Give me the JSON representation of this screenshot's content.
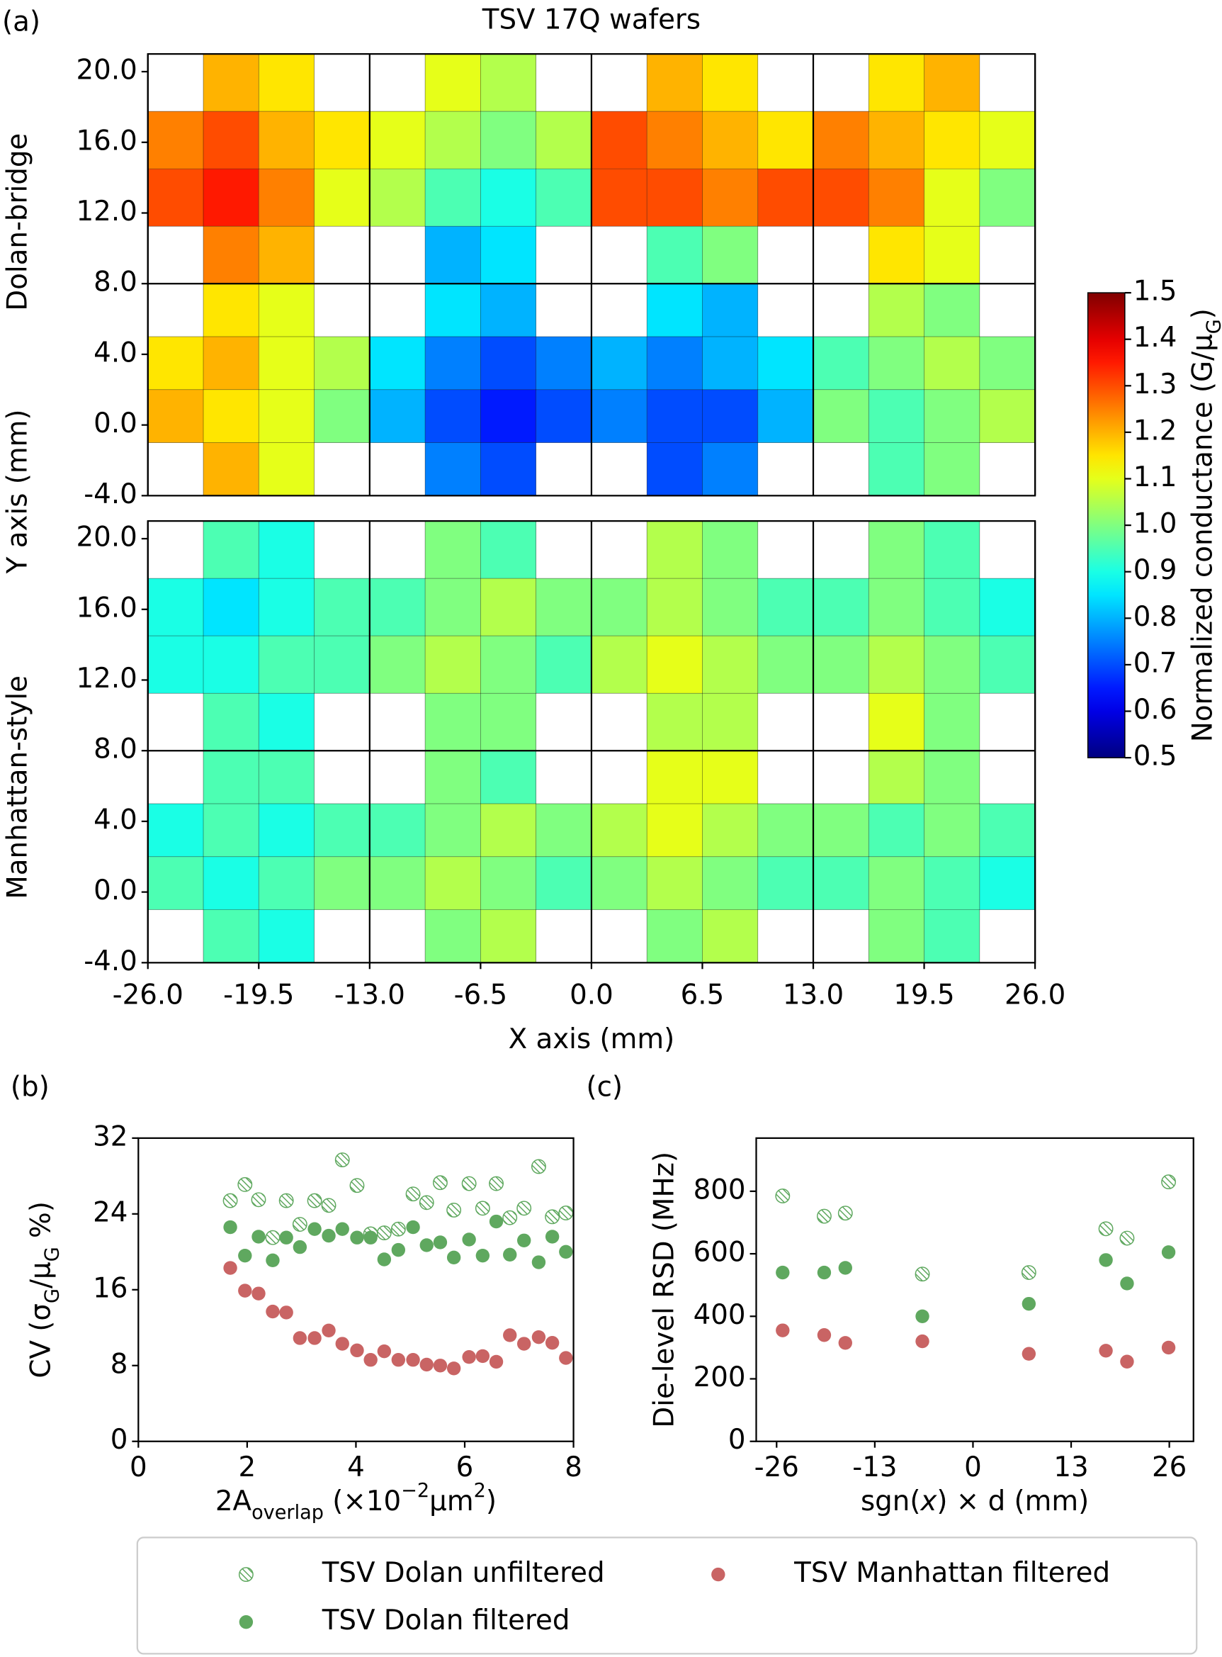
{
  "chart_data": [
    {
      "type": "heatmap",
      "title": "TSV 17Q wafers",
      "panel_label": "(a)",
      "xlabel": "X axis (mm)",
      "ylabel": "Y axis (mm)",
      "xlim": [
        -26,
        26
      ],
      "ylim": [
        -4,
        21
      ],
      "xticks": [
        {
          "value": -26,
          "label": "-26.0"
        },
        -19.5,
        {
          "value": -13,
          "label": "-13.0"
        },
        -6.5,
        {
          "value": 0,
          "label": "0.0"
        },
        6.5,
        {
          "value": 13,
          "label": "13.0"
        },
        19.5,
        {
          "value": 26,
          "label": "26.0"
        }
      ],
      "yticks": [
        {
          "value": -4,
          "label": "-4.0"
        },
        {
          "value": 0,
          "label": "0.0"
        },
        {
          "value": 4,
          "label": "4.0"
        },
        {
          "value": 8,
          "label": "8.0"
        },
        {
          "value": 12,
          "label": "12.0"
        },
        {
          "value": 16,
          "label": "16.0"
        },
        {
          "value": 20,
          "label": "20.0"
        }
      ],
      "xbins": [
        -26,
        -22.75,
        -19.5,
        -16.25,
        -13,
        -9.75,
        -6.5,
        -3.25,
        0,
        3.25,
        6.5,
        9.75,
        13,
        16.25,
        19.5,
        22.75,
        26
      ],
      "ybins": [
        21,
        17.75,
        14.5,
        11.25,
        8,
        5,
        2,
        -1,
        -4
      ],
      "colormap": "jet",
      "clim": [
        0.5,
        1.5
      ],
      "colorbar": {
        "label": [
          {
            "text": "Normalized conductance (G/μ"
          },
          {
            "text": "G",
            "shift": "sub"
          },
          {
            "text": ")"
          }
        ],
        "ticks": [
          0.5,
          0.6,
          0.7,
          0.8,
          0.9,
          {
            "value": 1,
            "label": "1.0"
          },
          1.1,
          1.2,
          1.3,
          1.4,
          1.5
        ]
      },
      "panels": [
        {
          "name": "Dolan-bridge",
          "color": "#6ab36a",
          "values": [
            [
              null,
              1.2,
              1.15,
              null,
              null,
              1.1,
              1.05,
              null,
              null,
              1.2,
              1.15,
              null,
              null,
              1.15,
              1.2,
              null
            ],
            [
              1.25,
              1.3,
              1.2,
              1.15,
              1.1,
              1.05,
              1.0,
              1.05,
              1.3,
              1.25,
              1.2,
              1.15,
              1.25,
              1.2,
              1.15,
              1.1
            ],
            [
              1.3,
              1.35,
              1.25,
              1.1,
              1.05,
              0.95,
              0.9,
              0.95,
              1.3,
              1.3,
              1.25,
              1.3,
              1.3,
              1.25,
              1.1,
              1.0
            ],
            [
              null,
              1.25,
              1.2,
              null,
              null,
              0.8,
              0.85,
              null,
              null,
              0.95,
              1.0,
              null,
              null,
              1.15,
              1.1,
              null
            ],
            [
              null,
              1.15,
              1.1,
              null,
              null,
              0.85,
              0.8,
              null,
              null,
              0.85,
              0.8,
              null,
              null,
              1.05,
              1.0,
              null
            ],
            [
              1.15,
              1.2,
              1.1,
              1.05,
              0.85,
              0.75,
              0.7,
              0.75,
              0.8,
              0.75,
              0.8,
              0.85,
              0.95,
              1.0,
              1.05,
              1.0
            ],
            [
              1.2,
              1.15,
              1.1,
              1.0,
              0.8,
              0.7,
              0.65,
              0.7,
              0.75,
              0.7,
              0.7,
              0.8,
              1.0,
              0.95,
              1.0,
              1.05
            ],
            [
              null,
              1.2,
              1.1,
              null,
              null,
              0.75,
              0.7,
              null,
              null,
              0.7,
              0.75,
              null,
              null,
              0.95,
              1.0,
              null
            ]
          ]
        },
        {
          "name": "Manhattan-style",
          "color": "#d46a6a",
          "values": [
            [
              null,
              0.95,
              0.9,
              null,
              null,
              1.0,
              0.95,
              null,
              null,
              1.05,
              1.0,
              null,
              null,
              1.0,
              0.95,
              null
            ],
            [
              0.9,
              0.85,
              0.9,
              0.95,
              0.95,
              1.0,
              1.05,
              1.0,
              1.0,
              1.05,
              1.0,
              0.95,
              0.95,
              1.0,
              0.95,
              0.9
            ],
            [
              0.9,
              0.9,
              0.95,
              0.95,
              1.0,
              1.05,
              1.0,
              0.95,
              1.05,
              1.1,
              1.05,
              1.0,
              1.0,
              1.05,
              1.0,
              0.95
            ],
            [
              null,
              0.95,
              0.9,
              null,
              null,
              1.0,
              1.0,
              null,
              null,
              1.05,
              1.05,
              null,
              null,
              1.1,
              1.0,
              null
            ],
            [
              null,
              0.95,
              0.95,
              null,
              null,
              1.0,
              0.95,
              null,
              null,
              1.1,
              1.1,
              null,
              null,
              1.05,
              1.0,
              null
            ],
            [
              0.9,
              0.95,
              0.9,
              0.95,
              0.95,
              1.0,
              1.05,
              1.0,
              1.05,
              1.1,
              1.05,
              1.0,
              1.0,
              0.95,
              1.0,
              0.95
            ],
            [
              0.95,
              0.9,
              0.95,
              1.0,
              1.0,
              1.05,
              1.0,
              0.95,
              1.0,
              1.05,
              1.0,
              0.95,
              0.95,
              1.0,
              0.95,
              0.9
            ],
            [
              null,
              0.95,
              0.9,
              null,
              null,
              1.0,
              1.05,
              null,
              null,
              1.0,
              1.05,
              null,
              null,
              1.0,
              0.95,
              null
            ]
          ]
        }
      ]
    },
    {
      "type": "scatter",
      "panel_label": "(b)",
      "xlabel": [
        {
          "text": "2A"
        },
        {
          "text": "overlap",
          "shift": "sub"
        },
        {
          "text": " (×10"
        },
        {
          "text": "−2",
          "shift": "super"
        },
        {
          "text": "μm"
        },
        {
          "text": "2",
          "shift": "super"
        },
        {
          "text": ")"
        }
      ],
      "ylabel": [
        {
          "text": "CV (σ"
        },
        {
          "text": "G",
          "shift": "sub"
        },
        {
          "text": "/μ"
        },
        {
          "text": "G",
          "shift": "sub"
        },
        {
          "text": " %)"
        }
      ],
      "xlim": [
        0,
        8
      ],
      "ylim": [
        0,
        32
      ],
      "xticks": [
        0,
        2,
        4,
        6,
        8
      ],
      "yticks": [
        0,
        8,
        16,
        24,
        32
      ],
      "x": [
        1.69,
        1.96,
        2.21,
        2.47,
        2.72,
        2.97,
        3.24,
        3.5,
        3.75,
        4.02,
        4.27,
        4.52,
        4.78,
        5.05,
        5.3,
        5.55,
        5.8,
        6.08,
        6.33,
        6.58,
        6.83,
        7.09,
        7.36,
        7.61,
        7.86
      ],
      "series": [
        {
          "name": "TSV Dolan unfiltered",
          "color": "#5fa85f",
          "marker": "hatched",
          "values": [
            25.4,
            27.1,
            25.5,
            21.5,
            25.4,
            22.9,
            25.4,
            24.9,
            29.7,
            27.0,
            21.9,
            22.0,
            22.4,
            26.1,
            25.2,
            27.3,
            24.4,
            27.2,
            24.6,
            27.2,
            23.6,
            24.6,
            29.0,
            23.7,
            24.1
          ]
        },
        {
          "name": "TSV Dolan filtered",
          "color": "#5fa85f",
          "marker": "filled",
          "values": [
            22.6,
            19.6,
            21.6,
            19.1,
            21.5,
            20.5,
            22.4,
            21.7,
            22.4,
            21.5,
            21.5,
            19.2,
            20.2,
            22.6,
            20.7,
            21.0,
            19.4,
            21.3,
            19.6,
            23.2,
            19.7,
            21.2,
            18.9,
            21.6,
            20.0
          ]
        },
        {
          "name": "TSV Manhattan filtered",
          "color": "#c96464",
          "marker": "filled",
          "values": [
            18.3,
            15.9,
            15.6,
            13.7,
            13.6,
            10.9,
            10.9,
            11.7,
            10.3,
            9.6,
            8.6,
            9.5,
            8.6,
            8.6,
            8.1,
            8.0,
            7.7,
            8.9,
            9.0,
            8.4,
            11.2,
            10.3,
            11.0,
            10.4,
            8.8
          ]
        }
      ],
      "legend": "bottom"
    },
    {
      "type": "scatter",
      "panel_label": "(c)",
      "xlabel": [
        {
          "text": "sgn("
        },
        {
          "text": "x",
          "style": "italic"
        },
        {
          "text": ") × d (mm)"
        }
      ],
      "ylabel": [
        {
          "text": "Die-level RSD (MHz)"
        }
      ],
      "xlim": [
        -28.7,
        29.2
      ],
      "ylim": [
        0,
        970
      ],
      "xticks": [
        -26,
        -13,
        0,
        13,
        26
      ],
      "yticks": [
        0,
        200,
        400,
        600,
        800
      ],
      "x": [
        -25.2,
        -19.7,
        -16.9,
        -6.7,
        7.4,
        17.6,
        20.4,
        25.9
      ],
      "series": [
        {
          "color": "#5fa85f",
          "marker": "hatched",
          "values": [
            785,
            720,
            730,
            535,
            540,
            680,
            650,
            830
          ]
        },
        {
          "color": "#5fa85f",
          "marker": "filled",
          "values": [
            540,
            540,
            555,
            400,
            440,
            580,
            505,
            605
          ]
        },
        {
          "color": "#c96464",
          "marker": "filled",
          "values": [
            355,
            340,
            315,
            320,
            280,
            290,
            255,
            300
          ]
        }
      ]
    }
  ]
}
